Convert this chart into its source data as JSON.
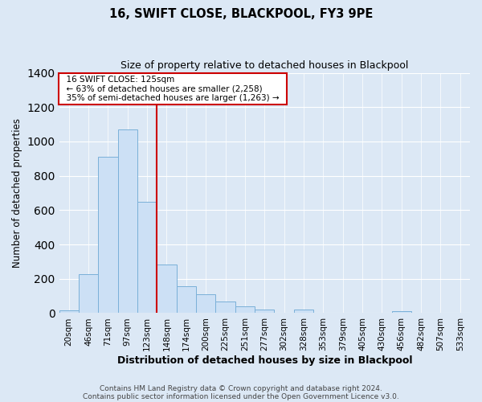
{
  "title": "16, SWIFT CLOSE, BLACKPOOL, FY3 9PE",
  "subtitle": "Size of property relative to detached houses in Blackpool",
  "xlabel": "Distribution of detached houses by size in Blackpool",
  "ylabel": "Number of detached properties",
  "bar_labels": [
    "20sqm",
    "46sqm",
    "71sqm",
    "97sqm",
    "123sqm",
    "148sqm",
    "174sqm",
    "200sqm",
    "225sqm",
    "251sqm",
    "277sqm",
    "302sqm",
    "328sqm",
    "353sqm",
    "379sqm",
    "405sqm",
    "430sqm",
    "456sqm",
    "482sqm",
    "507sqm",
    "533sqm"
  ],
  "bar_values": [
    15,
    228,
    910,
    1070,
    650,
    285,
    158,
    108,
    68,
    40,
    22,
    0,
    22,
    0,
    0,
    0,
    0,
    12,
    0,
    0,
    0
  ],
  "bar_color": "#cce0f5",
  "bar_edgecolor": "#7ab0d8",
  "vline_idx": 4,
  "vline_color": "#cc0000",
  "ylim": [
    0,
    1400
  ],
  "yticks": [
    0,
    200,
    400,
    600,
    800,
    1000,
    1200,
    1400
  ],
  "annotation_title": "16 SWIFT CLOSE: 125sqm",
  "annotation_line1": "← 63% of detached houses are smaller (2,258)",
  "annotation_line2": "35% of semi-detached houses are larger (1,263) →",
  "annotation_box_color": "#ffffff",
  "annotation_border_color": "#cc0000",
  "footer1": "Contains HM Land Registry data © Crown copyright and database right 2024.",
  "footer2": "Contains public sector information licensed under the Open Government Licence v3.0.",
  "background_color": "#dce8f5"
}
